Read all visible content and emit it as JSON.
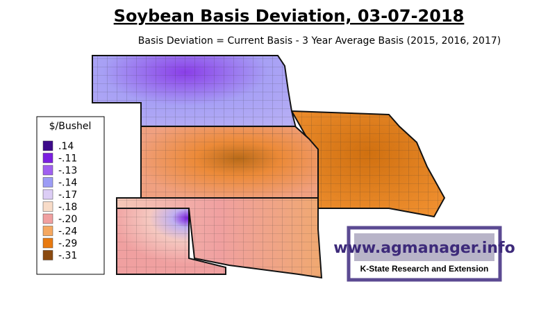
{
  "title": "Soybean Basis Deviation, 03-07-2018",
  "subtitle": "Basis Deviation = Current Basis - 3 Year Average Basis (2015, 2016, 2017)",
  "legend": {
    "title": "$/Bushel",
    "items": [
      {
        "label": ".14",
        "color": "#3d0a8a"
      },
      {
        "label": "-.11",
        "color": "#7b1fe0"
      },
      {
        "label": "-.13",
        "color": "#a060f0"
      },
      {
        "label": "-.14",
        "color": "#9c9cf5"
      },
      {
        "label": "-.17",
        "color": "#dccdf5"
      },
      {
        "label": "-.18",
        "color": "#f8dcc8"
      },
      {
        "label": "-.20",
        "color": "#f0a0a0"
      },
      {
        "label": "-.24",
        "color": "#f5a860"
      },
      {
        "label": "-.29",
        "color": "#e87a10"
      },
      {
        "label": "-.31",
        "color": "#8a4a10"
      }
    ]
  },
  "logo": {
    "url": "www.agmanager.info",
    "org": "K-State Research and Extension"
  }
}
